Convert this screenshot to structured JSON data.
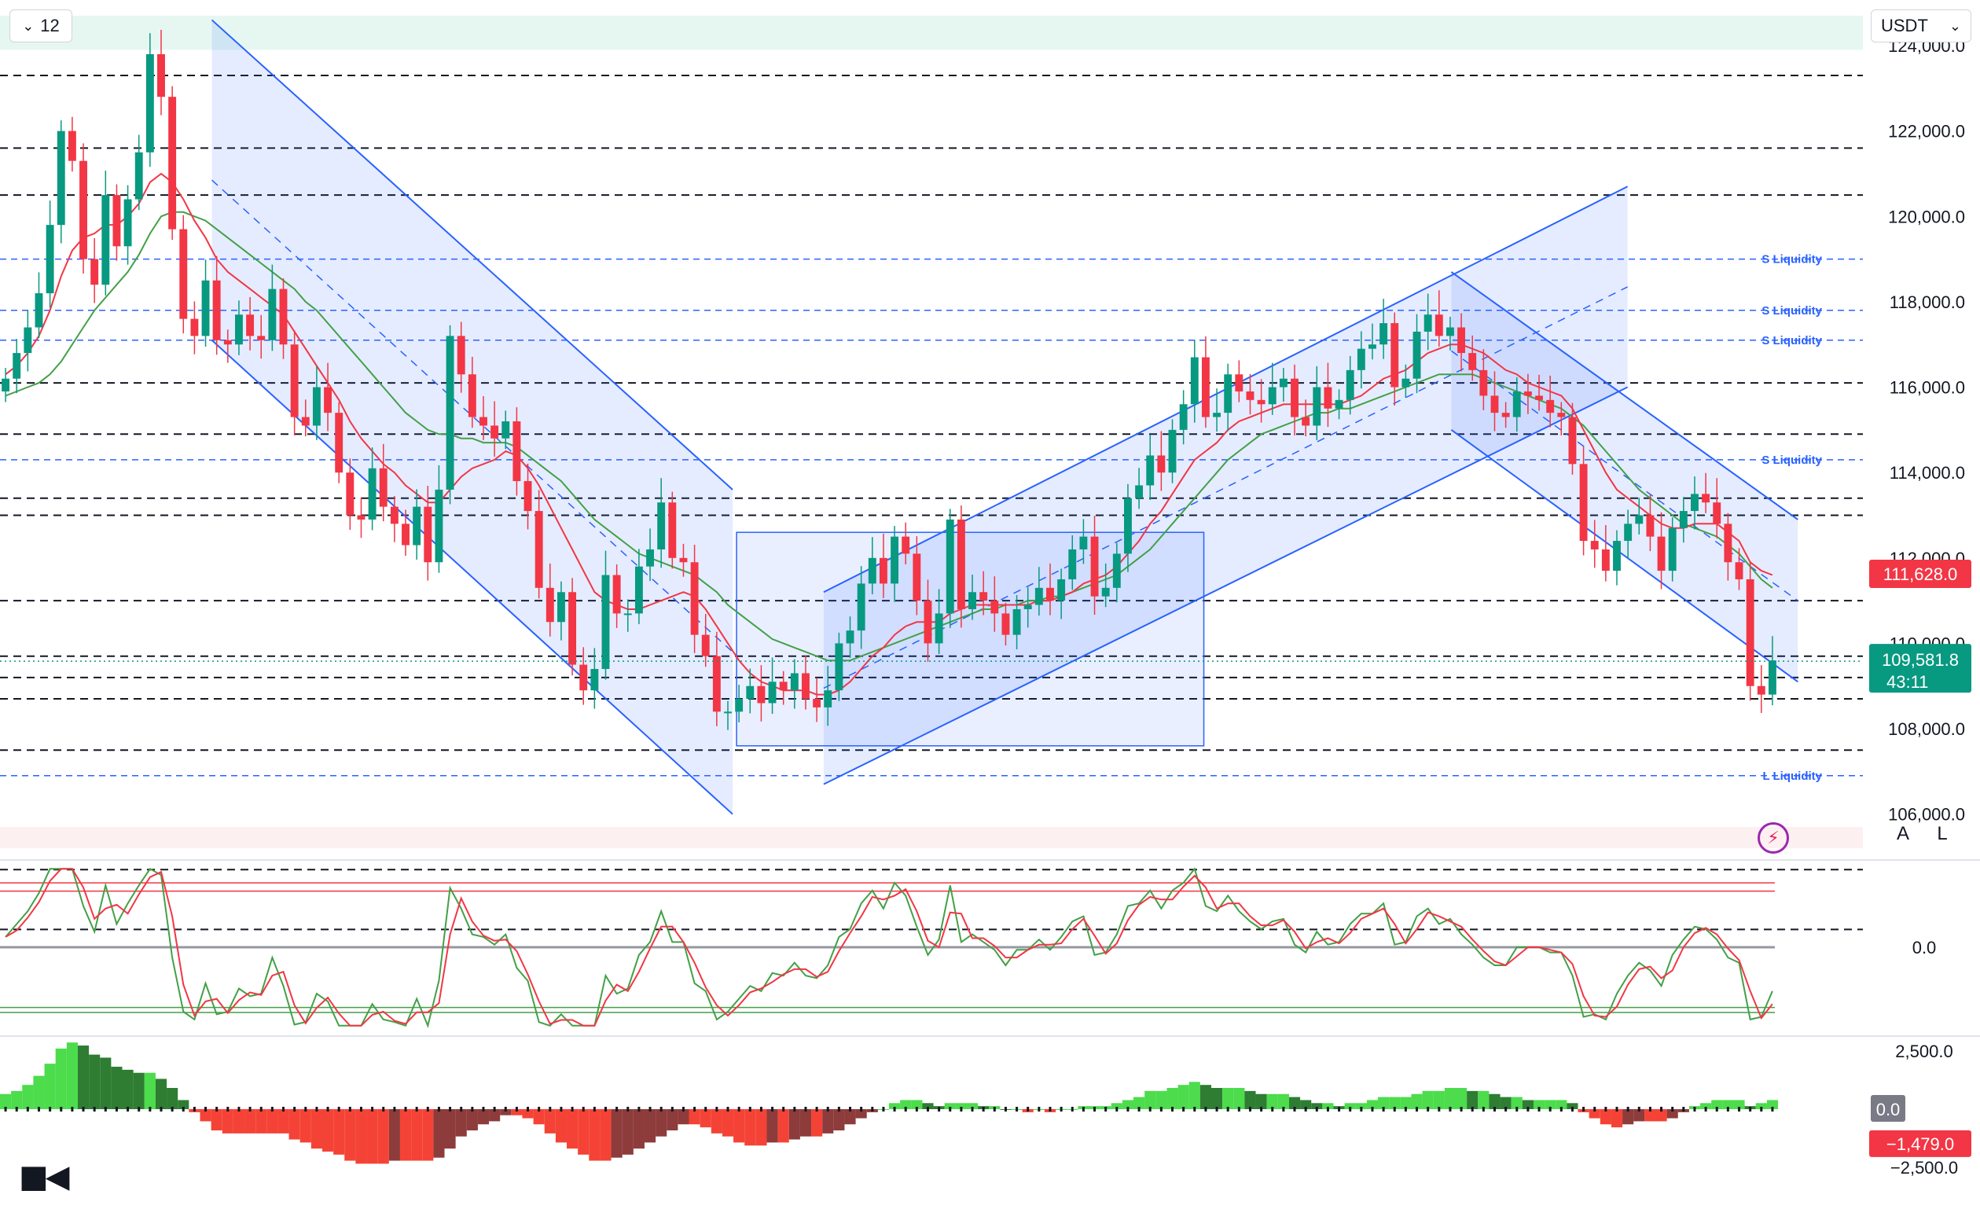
{
  "toolbar": {
    "interval_label": "12",
    "currency_label": "USDT"
  },
  "price_axis": {
    "ticks": [
      "124,000.0",
      "122,000.0",
      "120,000.0",
      "118,000.0",
      "116,000.0",
      "114,000.0",
      "112,000.0",
      "110,000.0",
      "108,000.0",
      "106,000.0"
    ],
    "sma_badge": "111,628.0",
    "last_price": "109,581.8",
    "countdown": "43:11"
  },
  "liquidity_labels": [
    "S Liquidity",
    "S Liquidity",
    "S Liquidity",
    "S Liquidity",
    "L Liquidity"
  ],
  "oscillator_panel": {
    "zero_label": "0.0"
  },
  "histogram_panel": {
    "top_label": "2,500.0",
    "zero_badge": "0.0",
    "value_badge": "−1,479.0",
    "bottom_label": "−2,500.0"
  },
  "scale_buttons": {
    "auto": "A",
    "log": "L"
  },
  "logo": "TV",
  "colors": {
    "up": "#089981",
    "down": "#f23645",
    "channel": "#2962ff",
    "sma_fast": "#f23645",
    "sma_slow": "#43a047"
  },
  "chart_data": {
    "type": "candlestick",
    "interval": "12",
    "quote": "USDT",
    "ylim": [
      105000,
      124700
    ],
    "yticks": [
      106000,
      108000,
      110000,
      112000,
      114000,
      116000,
      118000,
      120000,
      122000,
      124000
    ],
    "last_price": 109581.8,
    "sma_value": 111628.0,
    "close_path": [
      116200,
      116800,
      117400,
      118200,
      119800,
      122000,
      121300,
      119000,
      118400,
      120500,
      119300,
      120400,
      121500,
      123800,
      122800,
      119700,
      117600,
      117200,
      118500,
      117100,
      117000,
      117700,
      117200,
      117100,
      118300,
      117000,
      115300,
      115100,
      116000,
      115400,
      114000,
      113000,
      112900,
      114100,
      113200,
      112800,
      112300,
      113200,
      111900,
      113600,
      117200,
      116300,
      115300,
      115100,
      114800,
      115200,
      113800,
      113100,
      111300,
      110500,
      111200,
      109500,
      108900,
      109400,
      111600,
      110700,
      110700,
      111800,
      112200,
      113300,
      112000,
      111900,
      110200,
      109700,
      108400,
      108400,
      108700,
      109000,
      108600,
      109100,
      108900,
      109300,
      108700,
      108500,
      108900,
      110000,
      110300,
      111400,
      112000,
      111400,
      112500,
      112100,
      111000,
      110000,
      110700,
      112900,
      110800,
      111200,
      111000,
      110700,
      110200,
      110800,
      110900,
      111300,
      111000,
      111500,
      112200,
      112500,
      111100,
      111300,
      112100,
      113400,
      113700,
      114400,
      114000,
      115000,
      115600,
      116700,
      115300,
      115400,
      116300,
      115900,
      115700,
      115600,
      116000,
      116200,
      115300,
      115100,
      116000,
      115500,
      115700,
      116400,
      116900,
      117000,
      117500,
      116000,
      116200,
      117300,
      117700,
      117200,
      117400,
      116800,
      116400,
      115800,
      115400,
      115300,
      115900,
      115800,
      115700,
      115400,
      115300,
      114200,
      112400,
      112200,
      111700,
      112400,
      112800,
      113000,
      112500,
      111700,
      112700,
      113100,
      113500,
      113300,
      112800,
      111900,
      111500,
      109000,
      108800,
      109600
    ],
    "sma_fast": [
      116300,
      116500,
      116800,
      117200,
      117800,
      118600,
      119200,
      119500,
      119600,
      119800,
      119800,
      120000,
      120300,
      120800,
      121000,
      120800,
      120400,
      119900,
      119500,
      119000,
      118700,
      118500,
      118300,
      118100,
      117900,
      117700,
      117300,
      116900,
      116500,
      116100,
      115700,
      115200,
      114800,
      114500,
      114200,
      114000,
      113700,
      113500,
      113300,
      113300,
      113600,
      113900,
      114100,
      114200,
      114300,
      114500,
      114400,
      114100,
      113700,
      113200,
      112700,
      112200,
      111700,
      111200,
      111000,
      110900,
      110800,
      110800,
      110900,
      111000,
      111100,
      111200,
      111100,
      110800,
      110400,
      110000,
      109600,
      109300,
      109100,
      109000,
      108900,
      108900,
      108900,
      108800,
      108800,
      108900,
      109100,
      109400,
      109700,
      109900,
      110200,
      110400,
      110500,
      110500,
      110500,
      110700,
      110800,
      110900,
      110900,
      110900,
      110900,
      110900,
      110900,
      111000,
      111000,
      111100,
      111200,
      111400,
      111500,
      111600,
      111800,
      112100,
      112400,
      112800,
      113100,
      113500,
      113900,
      114300,
      114500,
      114700,
      115000,
      115200,
      115300,
      115400,
      115500,
      115600,
      115600,
      115600,
      115600,
      115600,
      115600,
      115700,
      115800,
      116000,
      116200,
      116300,
      116400,
      116600,
      116800,
      116900,
      117000,
      117000,
      116900,
      116800,
      116600,
      116400,
      116300,
      116100,
      116000,
      115900,
      115800,
      115500,
      115000,
      114500,
      114000,
      113600,
      113400,
      113200,
      113000,
      112800,
      112700,
      112700,
      112800,
      112800,
      112800,
      112600,
      112400,
      111900,
      111700,
      111600
    ],
    "sma_slow": [
      115800,
      115900,
      116000,
      116100,
      116300,
      116600,
      117000,
      117400,
      117800,
      118100,
      118400,
      118700,
      119100,
      119600,
      120000,
      120100,
      120100,
      120000,
      119900,
      119700,
      119500,
      119300,
      119100,
      118900,
      118700,
      118500,
      118300,
      118000,
      117800,
      117500,
      117200,
      116900,
      116600,
      116300,
      116000,
      115700,
      115400,
      115200,
      115000,
      114900,
      114900,
      114800,
      114800,
      114700,
      114700,
      114700,
      114600,
      114400,
      114200,
      114000,
      113800,
      113500,
      113200,
      112900,
      112700,
      112500,
      112300,
      112100,
      112000,
      111900,
      111800,
      111700,
      111600,
      111400,
      111200,
      110900,
      110700,
      110500,
      110300,
      110100,
      110000,
      109900,
      109800,
      109700,
      109600,
      109600,
      109600,
      109700,
      109800,
      109900,
      110000,
      110100,
      110200,
      110300,
      110400,
      110500,
      110600,
      110700,
      110800,
      110800,
      110900,
      110900,
      111000,
      111000,
      111100,
      111100,
      111200,
      111300,
      111400,
      111500,
      111600,
      111800,
      112000,
      112200,
      112500,
      112800,
      113100,
      113400,
      113700,
      114000,
      114300,
      114500,
      114700,
      114900,
      115000,
      115100,
      115200,
      115300,
      115400,
      115400,
      115500,
      115500,
      115600,
      115700,
      115800,
      115900,
      116000,
      116100,
      116200,
      116300,
      116300,
      116300,
      116300,
      116200,
      116100,
      116000,
      115900,
      115800,
      115700,
      115600,
      115500,
      115300,
      115100,
      114800,
      114500,
      114200,
      113900,
      113600,
      113400,
      113200,
      113000,
      112800,
      112700,
      112600,
      112500,
      112300,
      112100,
      111800,
      111500,
      111300
    ],
    "channels": [
      {
        "name": "falling-channel-1",
        "from": [
          0.107,
          124600
        ],
        "to": [
          0.37,
          113600
        ],
        "lower_from": [
          0.107,
          117100
        ],
        "lower_to": [
          0.37,
          106000
        ]
      },
      {
        "name": "rising-channel",
        "from": [
          0.416,
          111200
        ],
        "to": [
          0.822,
          120700
        ],
        "lower_from": [
          0.416,
          106700
        ],
        "lower_to": [
          0.822,
          116000
        ]
      },
      {
        "name": "falling-channel-2",
        "from": [
          0.733,
          118700
        ],
        "to": [
          0.908,
          112900
        ],
        "lower_from": [
          0.733,
          115000
        ],
        "lower_to": [
          0.908,
          109100
        ]
      }
    ],
    "range_box": {
      "from": [
        0.372,
        112600
      ],
      "to": [
        0.608,
        107600
      ]
    },
    "horizontal_levels": [
      123300,
      121600,
      120500,
      116100,
      114900,
      113400,
      113000,
      111000,
      109700,
      109200,
      108700,
      107500,
      104700,
      103300
    ],
    "liquidity_levels": [
      {
        "label": "S Liquidity",
        "price": 119000
      },
      {
        "label": "S Liquidity",
        "price": 117800
      },
      {
        "label": "S Liquidity",
        "price": 117100
      },
      {
        "label": "S Liquidity",
        "price": 114300
      },
      {
        "label": "L Liquidity",
        "price": 106900
      }
    ],
    "oscillator_zero": 0.0,
    "histogram_range": [
      -2500,
      2500
    ],
    "histogram_last": -1479.0
  }
}
